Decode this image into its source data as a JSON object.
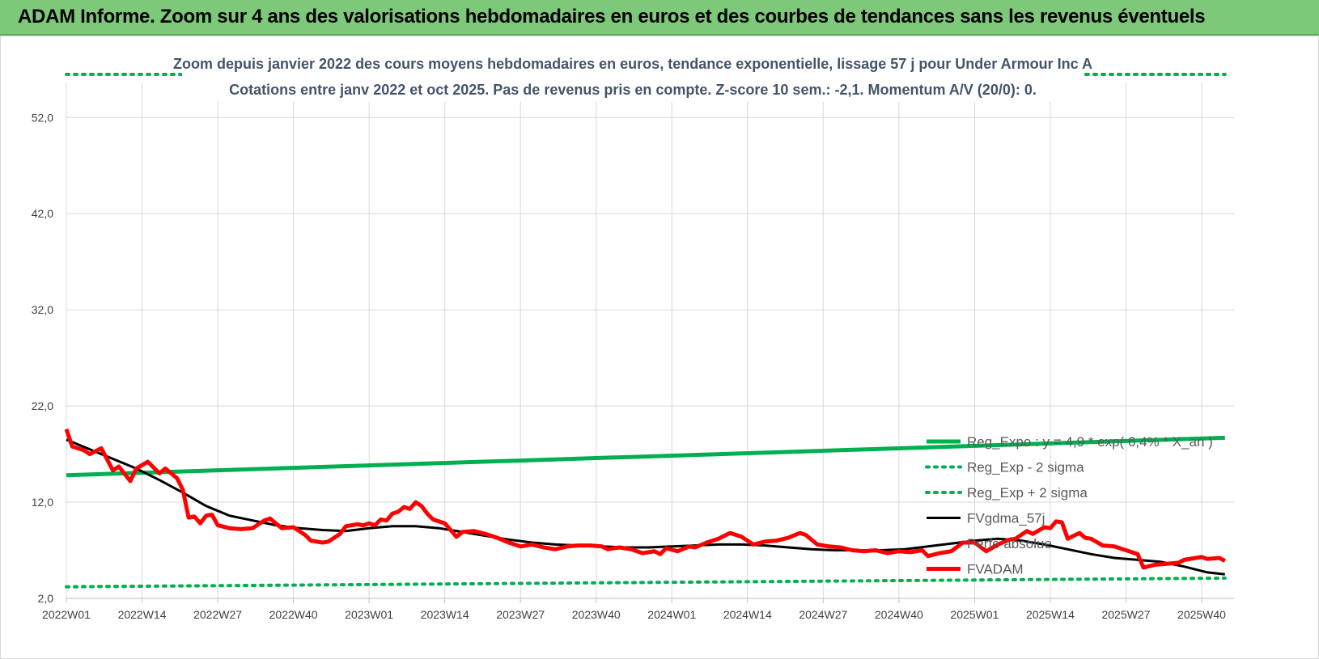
{
  "banner": {
    "title": "ADAM Informe. Zoom sur 4 ans des valorisations hebdomadaires en euros et des courbes de tendances sans les revenus éventuels"
  },
  "chart_data": {
    "type": "line",
    "title_lines": [
      "Zoom depuis janvier 2022 des cours moyens hebdomadaires en euros, tendance exponentielle, lissage 57 j pour Under Armour Inc A",
      "Cotations entre janv 2022 et oct 2025. Pas de revenus pris en compte. Z-score 10 sem.: -2,1.  Momentum A/V (20/0): 0."
    ],
    "x_ticks": [
      "2022W01",
      "2022W14",
      "2022W27",
      "2022W40",
      "2023W01",
      "2023W14",
      "2023W27",
      "2023W40",
      "2024W01",
      "2024W14",
      "2024W27",
      "2024W40",
      "2025W01",
      "2025W14",
      "2025W27",
      "2025W40"
    ],
    "y_ticks": [
      "2,0",
      "12,0",
      "22,0",
      "32,0",
      "42,0",
      "52,0"
    ],
    "ylim": [
      2,
      59
    ],
    "grid": true,
    "legend_position": "right",
    "colors": {
      "green": "#00b050",
      "black": "#000000",
      "red": "#ff0000"
    },
    "series": [
      {
        "name": "Reg_Expo : y = 4,9 * exp( 6,4% *  X_an )",
        "style": "solid-green",
        "points": [
          [
            0,
            14.8
          ],
          [
            199,
            18.7
          ]
        ]
      },
      {
        "name": "Reg_Exp - 2 sigma",
        "style": "dotted-green",
        "points": [
          [
            0,
            3.2
          ],
          [
            199,
            4.1
          ]
        ]
      },
      {
        "name": "Reg_Exp + 2 sigma",
        "style": "dotted-green",
        "points": [
          [
            0,
            60
          ],
          [
            199,
            60
          ]
        ]
      },
      {
        "name": "FVgdma_57j",
        "style": "solid-black",
        "points": [
          [
            0,
            18.5
          ],
          [
            4,
            17.5
          ],
          [
            8,
            16.5
          ],
          [
            12,
            15.5
          ],
          [
            16,
            14.3
          ],
          [
            20,
            13.0
          ],
          [
            24,
            11.6
          ],
          [
            28,
            10.6
          ],
          [
            32,
            10.1
          ],
          [
            36,
            9.6
          ],
          [
            40,
            9.3
          ],
          [
            44,
            9.1
          ],
          [
            48,
            9.0
          ],
          [
            52,
            9.3
          ],
          [
            56,
            9.5
          ],
          [
            60,
            9.5
          ],
          [
            64,
            9.3
          ],
          [
            68,
            8.9
          ],
          [
            72,
            8.5
          ],
          [
            76,
            8.1
          ],
          [
            80,
            7.8
          ],
          [
            84,
            7.6
          ],
          [
            88,
            7.5
          ],
          [
            92,
            7.4
          ],
          [
            96,
            7.3
          ],
          [
            100,
            7.3
          ],
          [
            104,
            7.4
          ],
          [
            108,
            7.5
          ],
          [
            112,
            7.6
          ],
          [
            116,
            7.6
          ],
          [
            120,
            7.5
          ],
          [
            124,
            7.3
          ],
          [
            128,
            7.1
          ],
          [
            132,
            7.0
          ],
          [
            136,
            7.0
          ],
          [
            140,
            7.0
          ],
          [
            144,
            7.1
          ],
          [
            148,
            7.4
          ],
          [
            152,
            7.7
          ],
          [
            156,
            8.0
          ],
          [
            160,
            8.2
          ],
          [
            164,
            8.0
          ],
          [
            168,
            7.6
          ],
          [
            172,
            7.1
          ],
          [
            176,
            6.6
          ],
          [
            180,
            6.2
          ],
          [
            184,
            6.0
          ],
          [
            188,
            5.8
          ],
          [
            192,
            5.3
          ],
          [
            196,
            4.7
          ],
          [
            199,
            4.5
          ]
        ]
      },
      {
        "name": "Perfo absolue",
        "style": "hidden",
        "points": []
      },
      {
        "name": "FVADAM",
        "style": "solid-red",
        "points": [
          [
            0,
            19.6
          ],
          [
            1,
            17.8
          ],
          [
            3,
            17.4
          ],
          [
            4,
            17.0
          ],
          [
            6,
            17.6
          ],
          [
            8,
            15.3
          ],
          [
            9,
            15.7
          ],
          [
            11,
            14.2
          ],
          [
            12,
            15.5
          ],
          [
            14,
            16.2
          ],
          [
            16,
            15.0
          ],
          [
            17,
            15.5
          ],
          [
            19,
            14.5
          ],
          [
            20,
            13.3
          ],
          [
            21,
            10.4
          ],
          [
            22,
            10.5
          ],
          [
            23,
            9.8
          ],
          [
            24,
            10.6
          ],
          [
            25,
            10.7
          ],
          [
            26,
            9.6
          ],
          [
            28,
            9.3
          ],
          [
            30,
            9.2
          ],
          [
            32,
            9.3
          ],
          [
            34,
            10.1
          ],
          [
            35,
            10.3
          ],
          [
            37,
            9.3
          ],
          [
            39,
            9.4
          ],
          [
            41,
            8.6
          ],
          [
            42,
            8.0
          ],
          [
            44,
            7.8
          ],
          [
            45,
            7.9
          ],
          [
            47,
            8.7
          ],
          [
            48,
            9.5
          ],
          [
            50,
            9.7
          ],
          [
            51,
            9.6
          ],
          [
            52,
            9.8
          ],
          [
            53,
            9.6
          ],
          [
            54,
            10.2
          ],
          [
            55,
            10.1
          ],
          [
            56,
            10.8
          ],
          [
            57,
            11.0
          ],
          [
            58,
            11.5
          ],
          [
            59,
            11.3
          ],
          [
            60,
            12.0
          ],
          [
            61,
            11.6
          ],
          [
            62,
            10.8
          ],
          [
            63,
            10.2
          ],
          [
            65,
            9.8
          ],
          [
            66,
            9.1
          ],
          [
            67,
            8.4
          ],
          [
            68,
            8.9
          ],
          [
            70,
            9.0
          ],
          [
            72,
            8.7
          ],
          [
            74,
            8.3
          ],
          [
            76,
            7.8
          ],
          [
            78,
            7.4
          ],
          [
            80,
            7.6
          ],
          [
            82,
            7.3
          ],
          [
            84,
            7.1
          ],
          [
            86,
            7.4
          ],
          [
            88,
            7.5
          ],
          [
            90,
            7.5
          ],
          [
            92,
            7.4
          ],
          [
            93,
            7.1
          ],
          [
            95,
            7.3
          ],
          [
            97,
            7.1
          ],
          [
            99,
            6.7
          ],
          [
            101,
            6.9
          ],
          [
            102,
            6.6
          ],
          [
            103,
            7.2
          ],
          [
            105,
            6.9
          ],
          [
            107,
            7.4
          ],
          [
            108,
            7.3
          ],
          [
            110,
            7.8
          ],
          [
            112,
            8.2
          ],
          [
            114,
            8.8
          ],
          [
            116,
            8.4
          ],
          [
            118,
            7.6
          ],
          [
            120,
            7.9
          ],
          [
            122,
            8.0
          ],
          [
            124,
            8.3
          ],
          [
            126,
            8.8
          ],
          [
            127,
            8.6
          ],
          [
            129,
            7.6
          ],
          [
            131,
            7.4
          ],
          [
            133,
            7.3
          ],
          [
            135,
            7.0
          ],
          [
            137,
            6.9
          ],
          [
            139,
            7.0
          ],
          [
            141,
            6.7
          ],
          [
            143,
            6.9
          ],
          [
            145,
            6.8
          ],
          [
            147,
            7.0
          ],
          [
            148,
            6.4
          ],
          [
            150,
            6.7
          ],
          [
            152,
            6.9
          ],
          [
            154,
            7.8
          ],
          [
            156,
            7.8
          ],
          [
            158,
            6.9
          ],
          [
            160,
            7.6
          ],
          [
            162,
            8.1
          ],
          [
            163,
            8.2
          ],
          [
            165,
            9.0
          ],
          [
            166,
            8.7
          ],
          [
            168,
            9.4
          ],
          [
            169,
            9.3
          ],
          [
            170,
            10.0
          ],
          [
            171,
            9.9
          ],
          [
            172,
            8.2
          ],
          [
            174,
            8.8
          ],
          [
            175,
            8.3
          ],
          [
            176,
            8.2
          ],
          [
            178,
            7.5
          ],
          [
            180,
            7.4
          ],
          [
            182,
            7.0
          ],
          [
            184,
            6.6
          ],
          [
            185,
            5.2
          ],
          [
            187,
            5.5
          ],
          [
            189,
            5.6
          ],
          [
            191,
            5.7
          ],
          [
            192,
            6.0
          ],
          [
            194,
            6.2
          ],
          [
            195,
            6.3
          ],
          [
            196,
            6.1
          ],
          [
            198,
            6.2
          ],
          [
            199,
            5.9
          ]
        ]
      }
    ]
  }
}
